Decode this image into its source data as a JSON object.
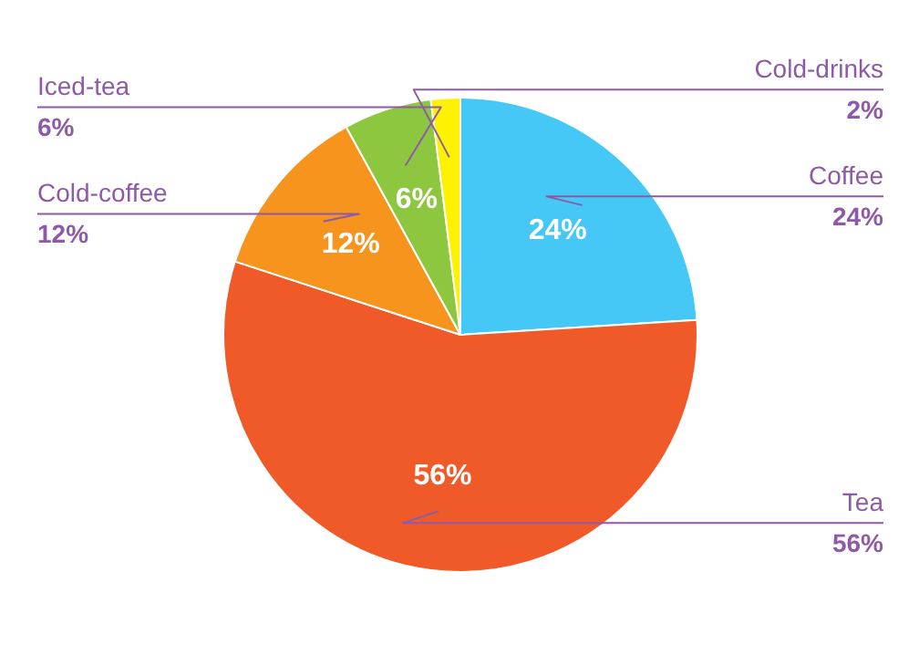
{
  "chart_data": {
    "type": "pie",
    "categories": [
      "Coffee",
      "Tea",
      "Cold-coffee",
      "Iced-tea",
      "Cold-drinks"
    ],
    "values": [
      24,
      56,
      12,
      6,
      2
    ],
    "colors": [
      "#45c8f5",
      "#f05a28",
      "#f7941d",
      "#8dc63f",
      "#fff200"
    ],
    "value_labels": [
      "24%",
      "56%",
      "12%",
      "6%",
      "2%"
    ]
  }
}
